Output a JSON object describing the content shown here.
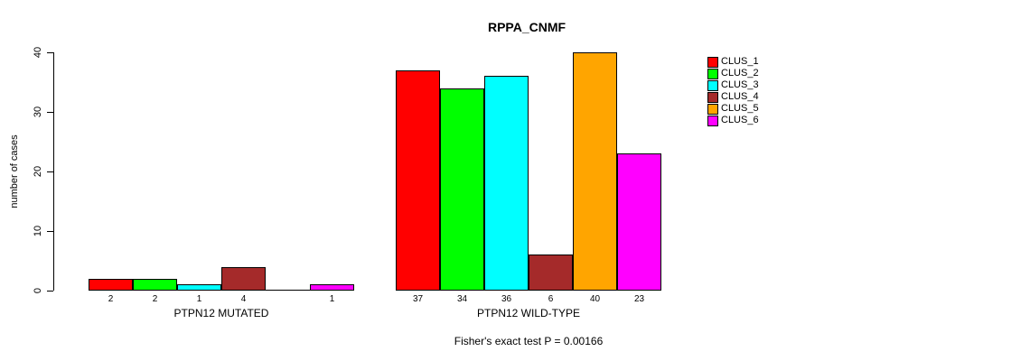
{
  "chart_data": {
    "type": "bar",
    "title": "RPPA_CNMF",
    "ylabel": "number of cases",
    "ylim": [
      0,
      40
    ],
    "yticks": [
      0,
      10,
      20,
      30,
      40
    ],
    "grid": false,
    "legend_position": "right",
    "categories": [
      "CLUS_1",
      "CLUS_2",
      "CLUS_3",
      "CLUS_4",
      "CLUS_5",
      "CLUS_6"
    ],
    "series_colors": [
      "#FF0000",
      "#00FF00",
      "#00FFFF",
      "#A52A2A",
      "#FFA500",
      "#FF00FF"
    ],
    "groups": [
      {
        "label": "PTPN12 MUTATED",
        "values": [
          2,
          2,
          1,
          4,
          0,
          1
        ]
      },
      {
        "label": "PTPN12 WILD-TYPE",
        "values": [
          37,
          34,
          36,
          6,
          40,
          23
        ]
      }
    ],
    "legend": [
      {
        "label": "CLUS_1",
        "color": "#FF0000"
      },
      {
        "label": "CLUS_2",
        "color": "#00FF00"
      },
      {
        "label": "CLUS_3",
        "color": "#00FFFF"
      },
      {
        "label": "CLUS_4",
        "color": "#A52A2A"
      },
      {
        "label": "CLUS_5",
        "color": "#FFA500"
      },
      {
        "label": "CLUS_6",
        "color": "#FF00FF"
      }
    ],
    "footer": "Fisher's exact test P = 0.00166",
    "axis_color": "#000000",
    "background_color": "#FFFFFF"
  }
}
